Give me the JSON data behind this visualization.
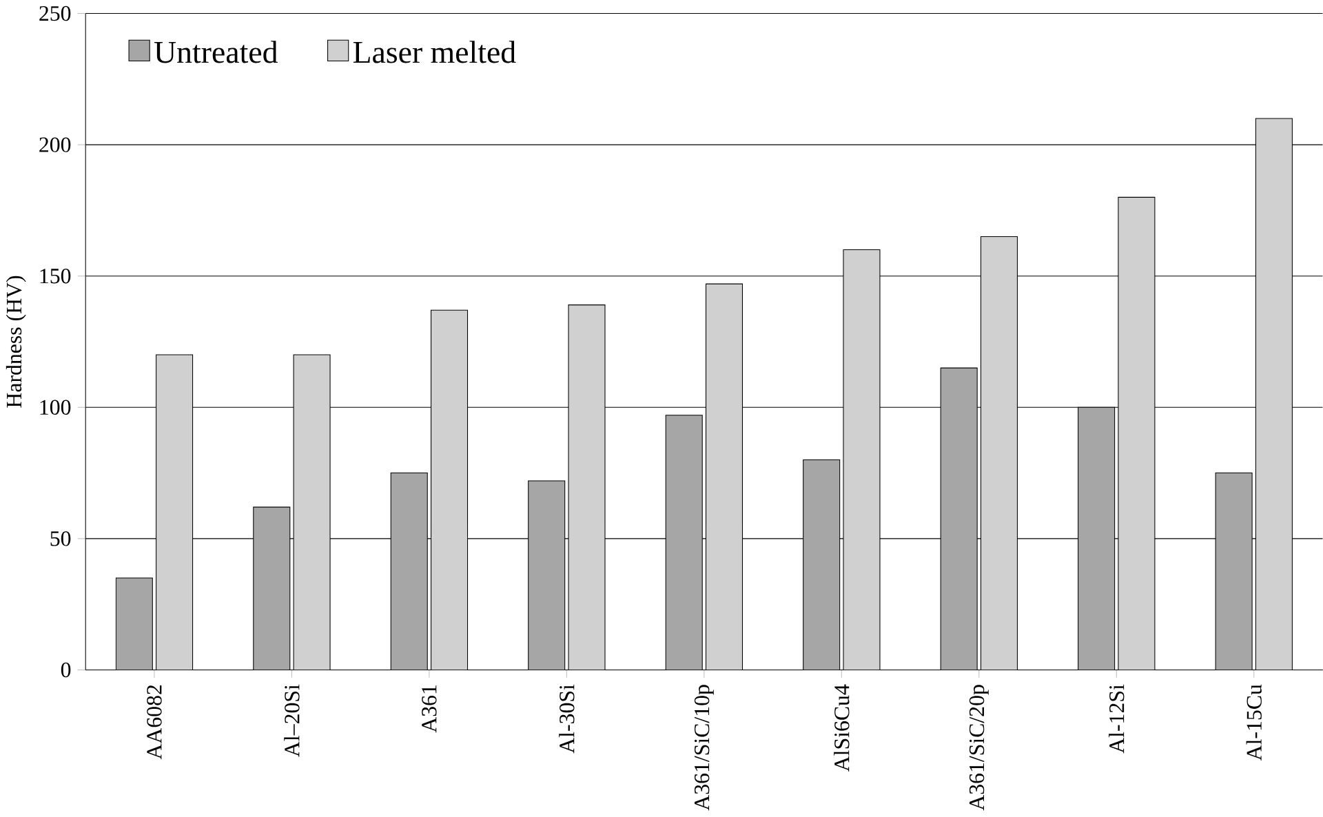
{
  "chart_data": {
    "type": "bar",
    "ylabel": "Hardness (HV)",
    "categories": [
      "AA6082",
      "Al–20Si",
      "A361",
      "Al-30Si",
      "A361/SiC/10p",
      "AlSi6Cu4",
      "A361/SiC/20p",
      "Al-12Si",
      "Al-15Cu"
    ],
    "series": [
      {
        "name": "Untreated",
        "color": "#a6a6a6",
        "values": [
          35,
          62,
          75,
          72,
          97,
          80,
          115,
          100,
          75
        ]
      },
      {
        "name": "Laser melted",
        "color": "#d0d0d0",
        "values": [
          120,
          120,
          137,
          139,
          147,
          160,
          165,
          180,
          210
        ]
      }
    ],
    "ylim": [
      0,
      250
    ],
    "yticks": [
      0,
      50,
      100,
      150,
      200,
      250
    ],
    "grid": "y",
    "legend": "top left"
  }
}
